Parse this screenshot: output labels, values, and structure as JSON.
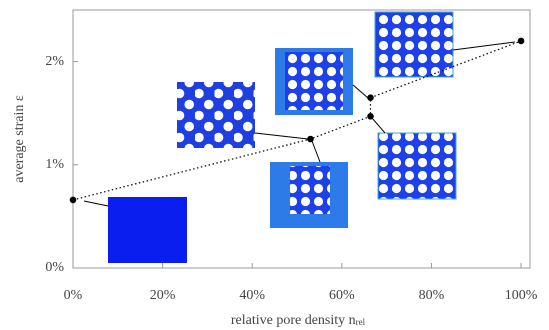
{
  "chart_data": {
    "type": "scatter",
    "xlabel": "relative pore density n",
    "xlabel_sub": "rel",
    "ylabel": "average strain ε",
    "xlim": [
      0,
      102
    ],
    "ylim": [
      0,
      2.5
    ],
    "xticks": [
      {
        "value": 0,
        "label": "0%"
      },
      {
        "value": 20,
        "label": "20%"
      },
      {
        "value": 40,
        "label": "40%"
      },
      {
        "value": 60,
        "label": "60%"
      },
      {
        "value": 80,
        "label": "80%"
      },
      {
        "value": 100,
        "label": "100%"
      }
    ],
    "yticks": [
      {
        "value": 0,
        "label": "0%"
      },
      {
        "value": 1,
        "label": "1%"
      },
      {
        "value": 2,
        "label": "2%"
      }
    ],
    "line_style": "dotted",
    "series": [
      {
        "color": "#000000",
        "x": [
          0,
          53,
          66.4,
          66.4,
          100
        ],
        "values": [
          0.66,
          1.25,
          1.47,
          1.65,
          2.2
        ]
      }
    ]
  }
}
